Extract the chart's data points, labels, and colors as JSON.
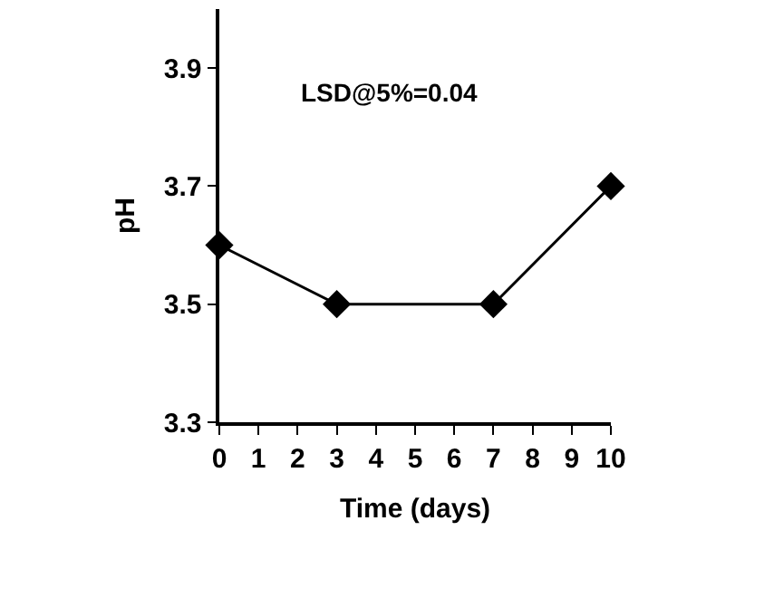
{
  "chart_data": {
    "type": "line",
    "xlabel": "Time (days)",
    "ylabel": "pH",
    "annotations": [
      "LSD@5%=0.04"
    ],
    "x": [
      0,
      3,
      7,
      10
    ],
    "series": [
      {
        "color": "#000000",
        "values": [
          3.6,
          3.5,
          3.5,
          3.7
        ]
      }
    ],
    "xlim": [
      0,
      10
    ],
    "xticks": [
      0,
      1,
      2,
      3,
      4,
      5,
      6,
      7,
      8,
      9,
      10
    ],
    "ylim": [
      3.3,
      4.0
    ],
    "yticks": [
      3.3,
      3.5,
      3.7,
      3.9
    ],
    "marker": "diamond",
    "line_style": "solid"
  }
}
